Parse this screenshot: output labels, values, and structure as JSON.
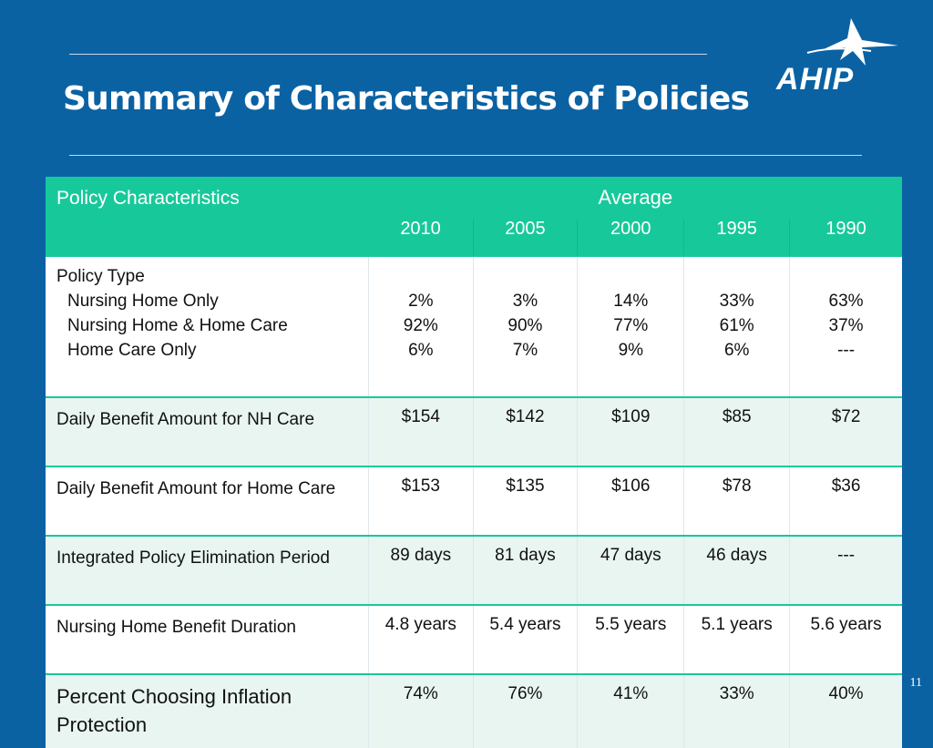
{
  "slide": {
    "title": "Summary of Characteristics of Policies",
    "logo_text": "AHIP",
    "page_number": "11",
    "colors": {
      "background": "#0a62a3",
      "header": "#17c99a",
      "row_tint": "#e9f5f1"
    }
  },
  "table": {
    "header_label": "Policy Characteristics",
    "group_label": "Average",
    "years": [
      "2010",
      "2005",
      "2000",
      "1995",
      "1990"
    ],
    "policy_type": {
      "label": "Policy Type",
      "subrows": [
        {
          "label": "Nursing Home Only",
          "values": [
            "2%",
            "3%",
            "14%",
            "33%",
            "63%"
          ]
        },
        {
          "label": "Nursing Home & Home Care",
          "values": [
            "92%",
            "90%",
            "77%",
            "61%",
            "37%"
          ]
        },
        {
          "label": "Home Care Only",
          "values": [
            "6%",
            "7%",
            "9%",
            "6%",
            "---"
          ]
        }
      ]
    },
    "rows": [
      {
        "label": "Daily Benefit Amount for NH Care",
        "values": [
          "$154",
          "$142",
          "$109",
          "$85",
          "$72"
        ]
      },
      {
        "label": "Daily Benefit Amount for Home Care",
        "values": [
          "$153",
          "$135",
          "$106",
          "$78",
          "$36"
        ]
      },
      {
        "label": "Integrated Policy Elimination Period",
        "values": [
          "89 days",
          "81 days",
          "47 days",
          "46 days",
          "---"
        ]
      },
      {
        "label": "Nursing Home Benefit Duration",
        "values": [
          "4.8 years",
          "5.4 years",
          "5.5 years",
          "5.1 years",
          "5.6 years"
        ]
      },
      {
        "label": "Percent Choosing Inflation Protection",
        "values": [
          "74%",
          "76%",
          "41%",
          "33%",
          "40%"
        ]
      }
    ]
  }
}
